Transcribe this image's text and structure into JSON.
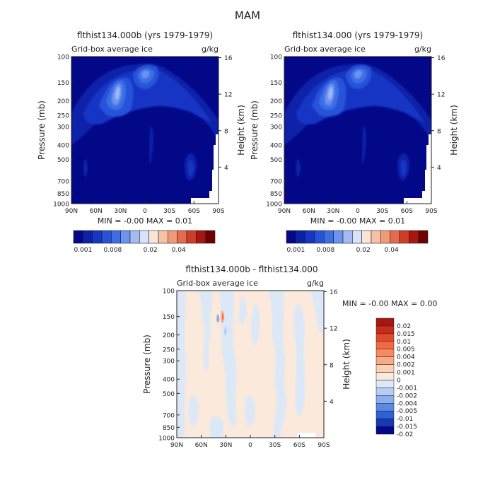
{
  "page_title": "MAM",
  "chart_data": [
    {
      "type": "heatmap",
      "title": "flthist134.000b (yrs 1979-1979)",
      "subtitle_left": "Grid-box average ice",
      "subtitle_right": "g/kg",
      "xlabel": "",
      "ylabel": "Pressure (mb)",
      "ylabel_right": "Height (km)",
      "x_ticks": [
        "90N",
        "60N",
        "30N",
        "0",
        "30S",
        "60S",
        "90S"
      ],
      "y_ticks": [
        "100",
        "150",
        "200",
        "250",
        "300",
        "400",
        "500",
        "700",
        "850",
        "1000"
      ],
      "y_ticks_right": [
        "16",
        "12",
        "8",
        "4"
      ],
      "stats": "MIN = -0.00   MAX =   0.01",
      "colorbar_labels": [
        "0.001",
        "0.008",
        "0.02",
        "0.04"
      ],
      "colors": [
        "#020887",
        "#0a21a8",
        "#1636c4",
        "#2752d9",
        "#3d6ee6",
        "#6b93ef",
        "#a3baf5",
        "#d6e3fb",
        "#fbe3d6",
        "#f7c1a5",
        "#f09a77",
        "#e66a4c",
        "#cf3d29",
        "#a8160f",
        "#6e0000"
      ]
    },
    {
      "type": "heatmap",
      "title": "flthist134.000 (yrs 1979-1979)",
      "subtitle_left": "Grid-box average ice",
      "subtitle_right": "g/kg",
      "xlabel": "",
      "ylabel": "Pressure (mb)",
      "ylabel_right": "Height (km)",
      "x_ticks": [
        "90N",
        "60N",
        "30N",
        "0",
        "30S",
        "60S",
        "90S"
      ],
      "y_ticks": [
        "100",
        "150",
        "200",
        "250",
        "300",
        "400",
        "500",
        "700",
        "850",
        "1000"
      ],
      "y_ticks_right": [
        "16",
        "12",
        "8",
        "4"
      ],
      "stats": "MIN = -0.00   MAX =   0.01",
      "colorbar_labels": [
        "0.001",
        "0.008",
        "0.02",
        "0.04"
      ]
    },
    {
      "type": "heatmap",
      "title": "flthist134.000b - flthist134.000",
      "subtitle_left": "Grid-box average ice",
      "subtitle_right": "g/kg",
      "xlabel": "",
      "ylabel": "Pressure (mb)",
      "ylabel_right": "Height (km)",
      "x_ticks": [
        "90N",
        "60N",
        "30N",
        "0",
        "30S",
        "60S",
        "90S"
      ],
      "y_ticks": [
        "100",
        "150",
        "200",
        "250",
        "300",
        "400",
        "500",
        "700",
        "850",
        "1000"
      ],
      "y_ticks_right": [
        "16",
        "12",
        "8",
        "4"
      ],
      "stats": "MIN =   -0.00    MAX =    0.00",
      "colorbar_labels": [
        "0.02",
        "0.015",
        "0.01",
        "0.005",
        "0.004",
        "0.002",
        "0.001",
        "0",
        "-0.001",
        "-0.002",
        "-0.004",
        "-0.005",
        "-0.01",
        "-0.015",
        "-0.02"
      ],
      "colors": [
        "#a8160f",
        "#c92a1a",
        "#e04a2c",
        "#f06a44",
        "#f68a62",
        "#f9ab86",
        "#fbd0b4",
        "#fbe9db",
        "#dbe8f8",
        "#b6cdf3",
        "#8aaeee",
        "#5b89e6",
        "#2f60d6",
        "#1538b5",
        "#020887"
      ]
    }
  ]
}
